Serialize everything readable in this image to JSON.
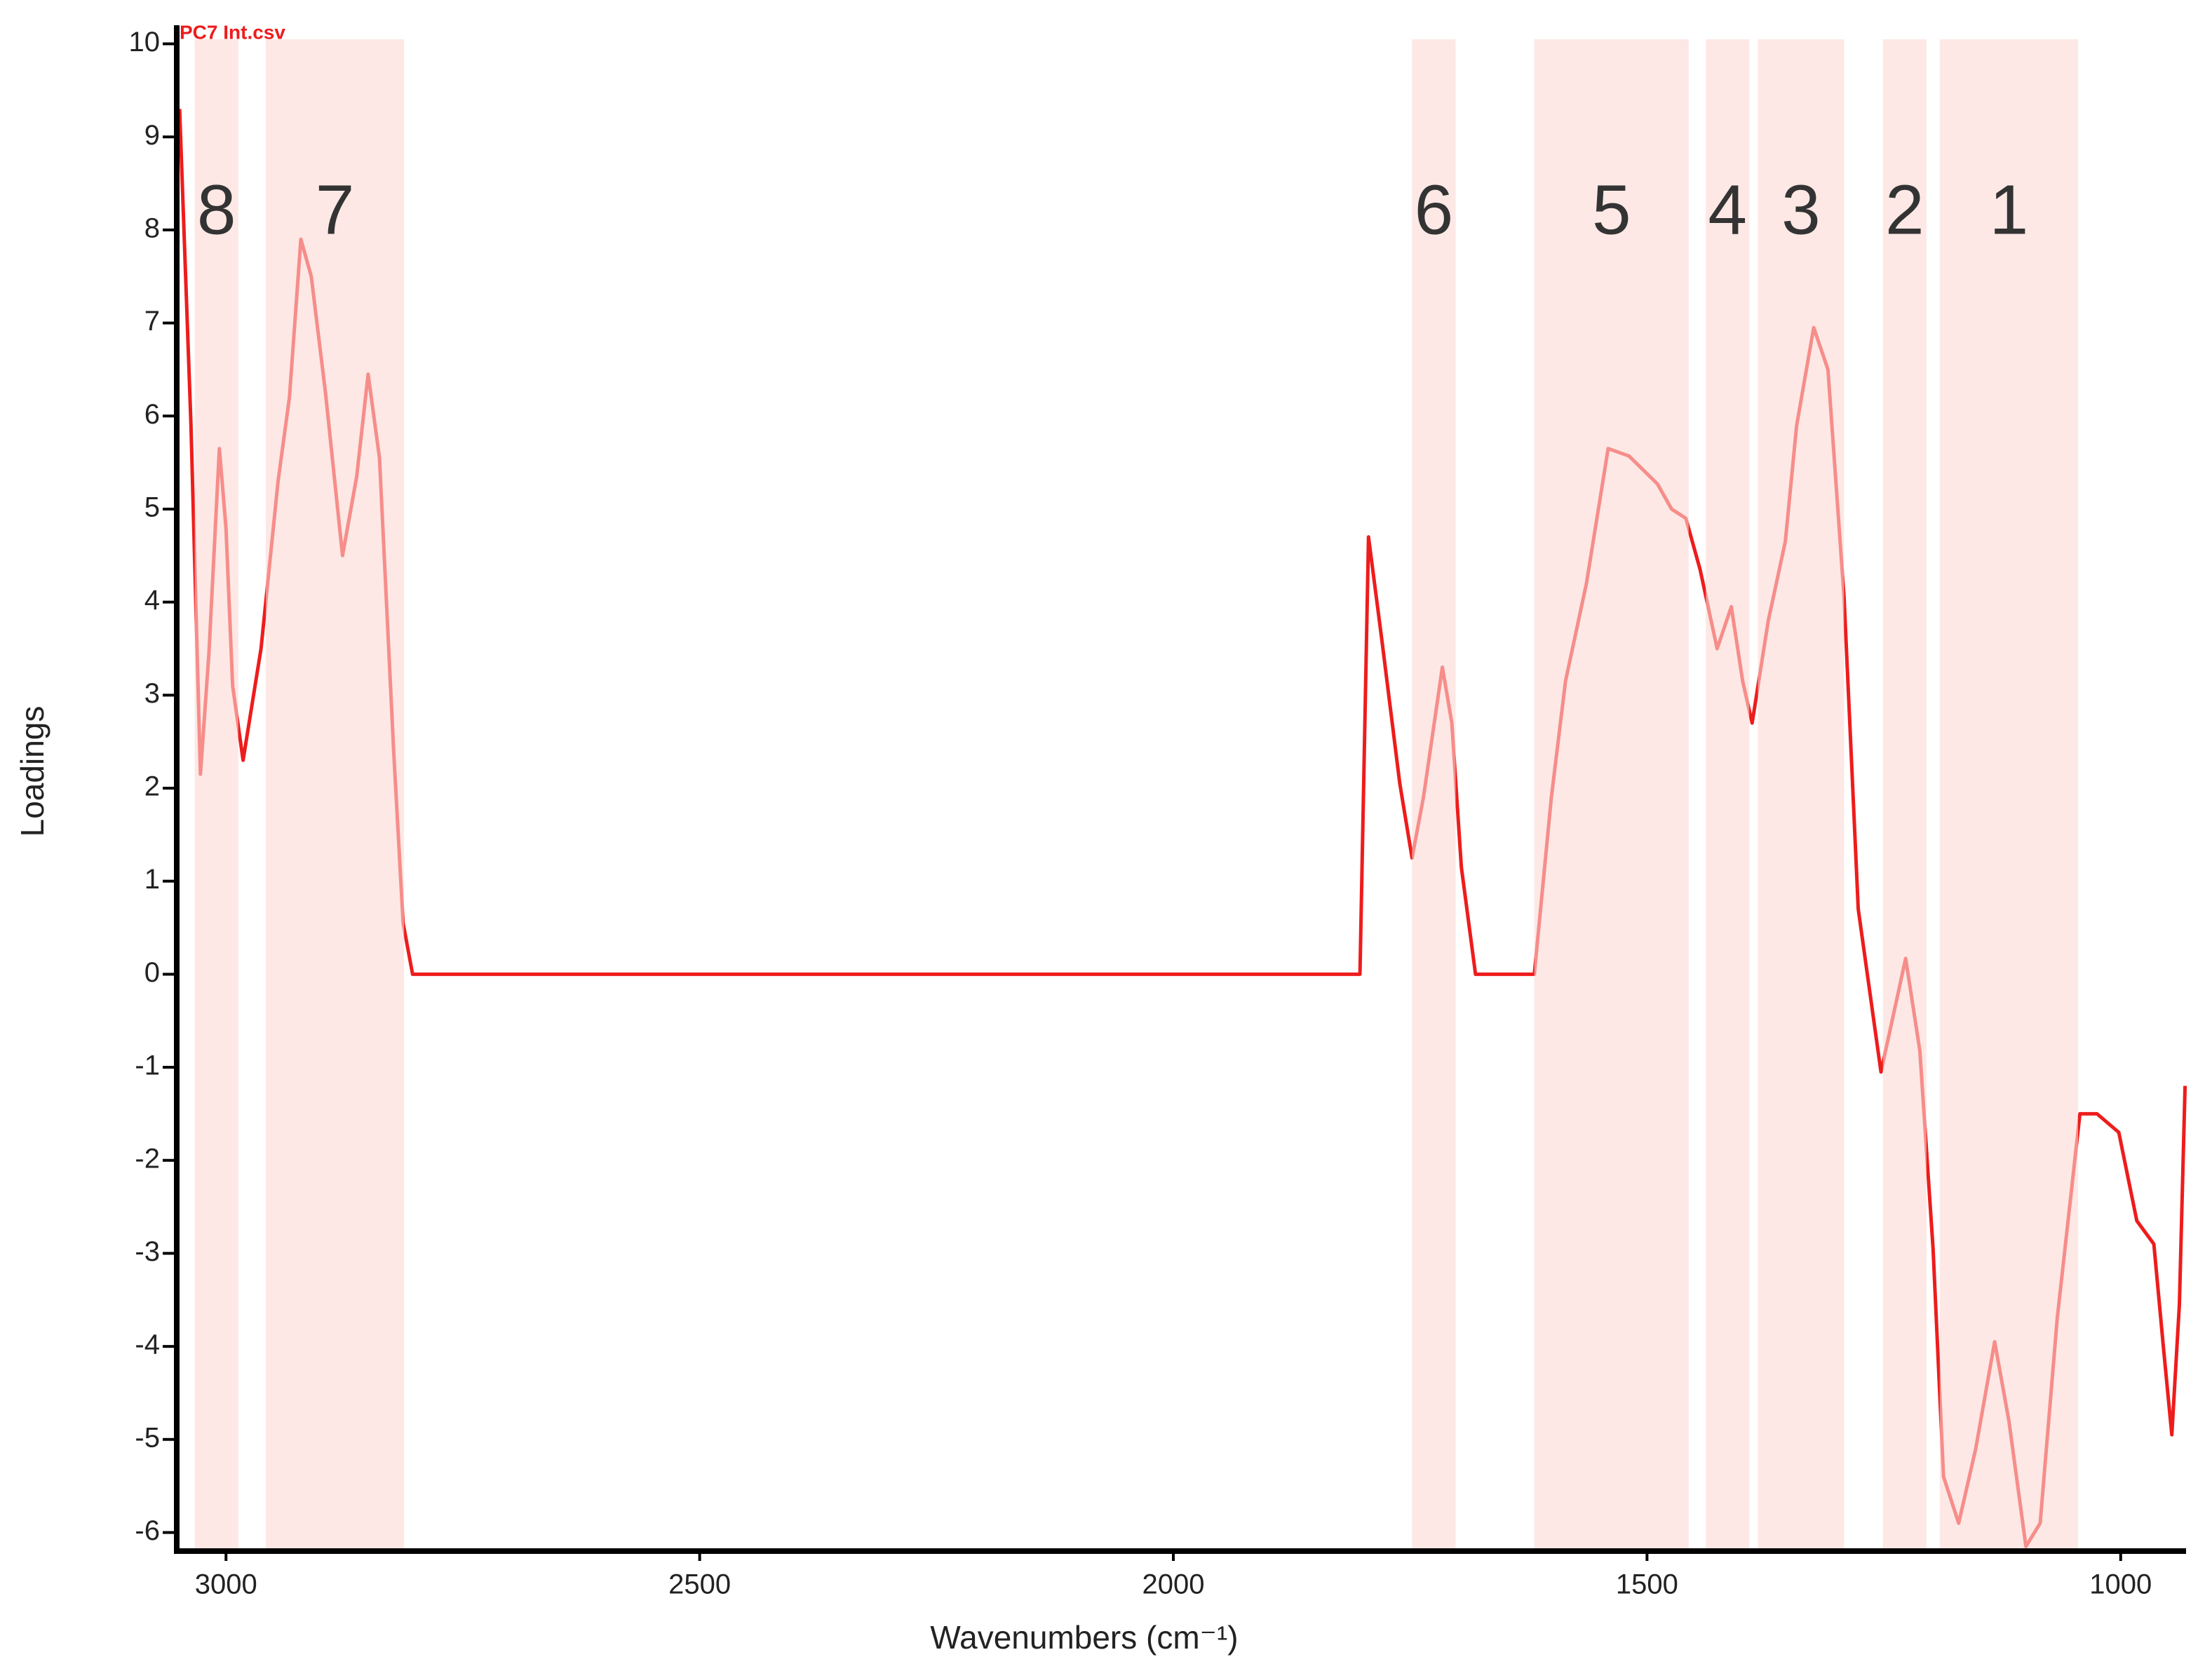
{
  "chart_data": {
    "type": "line",
    "x_label": "Wavenumbers (cm⁻¹)",
    "y_label": "Loadings",
    "xlim": [
      3052,
      931
    ],
    "ylim": [
      -6.2,
      10.2
    ],
    "xticks": [
      3000,
      2500,
      2000,
      1500,
      1000
    ],
    "yticks": [
      -6,
      -5,
      -4,
      -3,
      -2,
      -1,
      0,
      1,
      2,
      3,
      4,
      5,
      6,
      7,
      8,
      9,
      10
    ],
    "bands": [
      {
        "label": "8",
        "from": 3033,
        "to": 2987
      },
      {
        "label": "7",
        "from": 2958,
        "to": 2812
      },
      {
        "label": "6",
        "from": 1748,
        "to": 1702
      },
      {
        "label": "5",
        "from": 1619,
        "to": 1456
      },
      {
        "label": "4",
        "from": 1438,
        "to": 1392
      },
      {
        "label": "3",
        "from": 1383,
        "to": 1292
      },
      {
        "label": "2",
        "from": 1251,
        "to": 1205
      },
      {
        "label": "1",
        "from": 1191,
        "to": 1045
      }
    ],
    "band_color": "#fbd9d4",
    "series": [
      {
        "name": "PC7 Int.csv",
        "color": "#ee1c1c",
        "x": [
          3049,
          3037,
          3027,
          3018,
          3007,
          3000,
          2993,
          2982,
          2963,
          2945,
          2933,
          2921,
          2910,
          2895,
          2877,
          2862,
          2850,
          2838,
          2823,
          2813,
          2803,
          1803,
          1794,
          1780,
          1761,
          1748,
          1736,
          1716,
          1706,
          1696,
          1681,
          1619,
          1601,
          1586,
          1564,
          1541,
          1519,
          1489,
          1474,
          1459,
          1444,
          1426,
          1411,
          1399,
          1389,
          1372,
          1354,
          1342,
          1324,
          1309,
          1292,
          1277,
          1253,
          1227,
          1212,
          1198,
          1187,
          1171,
          1153,
          1133,
          1118,
          1100,
          1085,
          1067,
          1043,
          1025,
          1002,
          983,
          965,
          955,
          946,
          938,
          932
        ],
        "values": [
          9.3,
          5.9,
          2.15,
          3.45,
          5.65,
          4.8,
          3.1,
          2.3,
          3.5,
          5.3,
          6.2,
          7.9,
          7.5,
          6.25,
          4.5,
          5.35,
          6.45,
          5.55,
          2.4,
          0.55,
          0,
          0,
          4.7,
          3.6,
          2.05,
          1.25,
          1.9,
          3.3,
          2.7,
          1.15,
          0,
          0,
          1.9,
          3.15,
          4.2,
          5.65,
          5.57,
          5.27,
          5.0,
          4.9,
          4.35,
          3.5,
          3.95,
          3.15,
          2.7,
          3.8,
          4.65,
          5.9,
          6.95,
          6.5,
          4.05,
          0.7,
          -1.05,
          0.17,
          -0.82,
          -2.95,
          -5.4,
          -5.9,
          -5.1,
          -3.95,
          -4.8,
          -6.15,
          -5.9,
          -3.7,
          -1.5,
          -1.5,
          -1.7,
          -2.65,
          -2.9,
          -4.0,
          -4.95,
          -3.55,
          -1.2
        ]
      }
    ]
  }
}
